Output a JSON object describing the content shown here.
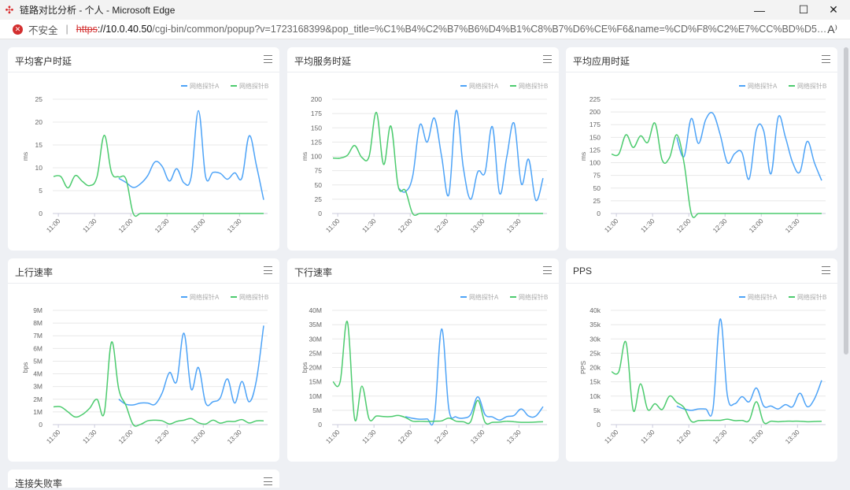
{
  "window": {
    "title": "链路对比分析 - 个人 - Microsoft Edge",
    "minimize": "—",
    "maximize": "☐",
    "close": "✕"
  },
  "address": {
    "security_label": "不安全",
    "protocol": "https",
    "host": "://10.0.40.50",
    "path": "/cgi-bin/common/popup?v=1723168399&pop_title=%C1%B4%C2%B7%B6%D4%B1%C8%B7%D6%CE%F6&name=%CD%F8%C2%E7%CC%BD%D5%EBA,%CD%F8%C...",
    "read_aloud": "A⁾"
  },
  "colors": {
    "series_a": "#4da3f7",
    "series_b": "#4ccb6e"
  },
  "legend": [
    "网络探针A",
    "网络探针B"
  ],
  "times": [
    "10:56",
    "11:02",
    "11:08",
    "11:14",
    "11:20",
    "11:26",
    "11:32",
    "11:38",
    "11:44",
    "11:50",
    "11:56",
    "12:02",
    "12:08",
    "12:14",
    "12:20",
    "12:26",
    "12:32",
    "12:38",
    "12:44",
    "12:50",
    "12:56",
    "13:02",
    "13:08",
    "13:14",
    "13:20",
    "13:26",
    "13:32",
    "13:38",
    "13:44",
    "13:50"
  ],
  "xticks": [
    "11:00",
    "11:30",
    "12:00",
    "12:30",
    "13:00",
    "13:30"
  ],
  "partial_card": {
    "title": "连接失败率"
  },
  "chart_data": [
    {
      "type": "line",
      "title": "平均客户时延",
      "ylabel": "ms",
      "ylim": [
        0,
        25
      ],
      "yticks": [
        0,
        5,
        10,
        15,
        20,
        25
      ],
      "ytick_labels": [
        "0",
        "5",
        "10",
        "15",
        "20",
        "25"
      ],
      "series": [
        {
          "name": "网络探针A",
          "values": [
            null,
            null,
            null,
            null,
            null,
            null,
            null,
            null,
            null,
            7.7,
            6.8,
            5.7,
            6.5,
            8.3,
            11.3,
            10.3,
            7.1,
            9.8,
            6.7,
            8,
            22.5,
            8,
            9,
            8.8,
            7.5,
            8.9,
            7.8,
            17,
            10.5,
            3
          ]
        },
        {
          "name": "网络探针B",
          "values": [
            8.1,
            8.1,
            5.6,
            8.3,
            7,
            6.1,
            8,
            17.1,
            9,
            8,
            7.5,
            0,
            0,
            0,
            0,
            0,
            0,
            0,
            0,
            0,
            0,
            0,
            0,
            0,
            0,
            0,
            0,
            0,
            0,
            0
          ]
        }
      ]
    },
    {
      "type": "line",
      "title": "平均服务时延",
      "ylabel": "ms",
      "ylim": [
        0,
        200
      ],
      "yticks": [
        0,
        25,
        50,
        75,
        100,
        125,
        150,
        175,
        200
      ],
      "ytick_labels": [
        "0",
        "25",
        "50",
        "75",
        "100",
        "125",
        "150",
        "175",
        "200"
      ],
      "series": [
        {
          "name": "网络探针A",
          "values": [
            null,
            null,
            null,
            null,
            null,
            null,
            null,
            null,
            null,
            45,
            38,
            65,
            155,
            125,
            167,
            100,
            33,
            180,
            80,
            25,
            73,
            72,
            152,
            35,
            100,
            158,
            52,
            95,
            23,
            62
          ]
        },
        {
          "name": "网络探针B",
          "values": [
            97,
            97,
            102,
            119,
            98,
            100,
            177,
            86,
            153,
            48,
            40,
            0,
            0,
            0,
            0,
            0,
            0,
            0,
            0,
            0,
            0,
            0,
            0,
            0,
            0,
            0,
            0,
            0,
            0,
            0
          ]
        }
      ]
    },
    {
      "type": "line",
      "title": "平均应用时延",
      "ylabel": "ms",
      "ylim": [
        0,
        225
      ],
      "yticks": [
        0,
        25,
        50,
        75,
        100,
        125,
        150,
        175,
        200,
        225
      ],
      "ytick_labels": [
        "0",
        "25",
        "50",
        "75",
        "100",
        "125",
        "150",
        "175",
        "200",
        "225"
      ],
      "series": [
        {
          "name": "网络探针A",
          "values": [
            null,
            null,
            null,
            null,
            null,
            null,
            null,
            null,
            null,
            150,
            112,
            187,
            138,
            185,
            197,
            155,
            100,
            118,
            120,
            68,
            165,
            163,
            78,
            190,
            150,
            100,
            82,
            142,
            100,
            65
          ]
        },
        {
          "name": "网络探针B",
          "values": [
            117,
            117,
            155,
            130,
            153,
            140,
            178,
            105,
            110,
            155,
            100,
            0,
            0,
            0,
            0,
            0,
            0,
            0,
            0,
            0,
            0,
            0,
            0,
            0,
            0,
            0,
            0,
            0,
            0,
            0
          ]
        }
      ]
    },
    {
      "type": "line",
      "title": "上行速率",
      "ylabel": "bps",
      "ylim": [
        0,
        9
      ],
      "yticks": [
        0,
        1,
        2,
        3,
        4,
        5,
        6,
        7,
        8,
        9
      ],
      "ytick_labels": [
        "0",
        "1M",
        "2M",
        "3M",
        "4M",
        "5M",
        "6M",
        "7M",
        "8M",
        "9M"
      ],
      "series": [
        {
          "name": "网络探针A",
          "values": [
            null,
            null,
            null,
            null,
            null,
            null,
            null,
            null,
            null,
            2.0,
            1.6,
            1.55,
            1.7,
            1.7,
            1.6,
            2.5,
            4.1,
            3.4,
            7.2,
            2.8,
            4.5,
            1.7,
            1.8,
            2.1,
            3.6,
            1.7,
            3.4,
            1.8,
            3.5,
            7.8
          ]
        },
        {
          "name": "网络探针B",
          "values": [
            1.4,
            1.4,
            1.0,
            0.6,
            0.8,
            1.3,
            2.0,
            0.9,
            6.5,
            2.8,
            1.5,
            0,
            0.02,
            0.3,
            0.35,
            0.3,
            0.05,
            0.25,
            0.35,
            0.48,
            0.15,
            0.05,
            0.35,
            0.12,
            0.25,
            0.25,
            0.4,
            0.13,
            0.3,
            0.3
          ]
        }
      ]
    },
    {
      "type": "line",
      "title": "下行速率",
      "ylabel": "bps",
      "ylim": [
        0,
        40
      ],
      "yticks": [
        0,
        5,
        10,
        15,
        20,
        25,
        30,
        35,
        40
      ],
      "ytick_labels": [
        "0",
        "5M",
        "10M",
        "15M",
        "20M",
        "25M",
        "30M",
        "35M",
        "40M"
      ],
      "series": [
        {
          "name": "网络探针A",
          "values": [
            null,
            null,
            null,
            null,
            null,
            null,
            null,
            null,
            null,
            null,
            2.8,
            2.2,
            1.9,
            2,
            2.5,
            33.5,
            5.5,
            2.7,
            2.3,
            3.5,
            9.7,
            3.5,
            2.7,
            1.6,
            2.8,
            3.2,
            5.5,
            3,
            3,
            6.3
          ]
        },
        {
          "name": "网络探针B",
          "values": [
            15,
            15,
            36,
            2,
            13.5,
            2,
            3,
            2.8,
            2.8,
            3.2,
            2.5,
            1.2,
            1.2,
            1.1,
            1.2,
            1.3,
            2.3,
            1.2,
            1,
            1,
            8.5,
            0.8,
            0.8,
            0.9,
            1.2,
            1,
            0.8,
            0.8,
            0.9,
            1
          ]
        }
      ]
    },
    {
      "type": "line",
      "title": "PPS",
      "ylabel": "PPS",
      "ylim": [
        0,
        40
      ],
      "yticks": [
        0,
        5,
        10,
        15,
        20,
        25,
        30,
        35,
        40
      ],
      "ytick_labels": [
        "0",
        "5k",
        "10k",
        "15k",
        "20k",
        "25k",
        "30k",
        "35k",
        "40k"
      ],
      "series": [
        {
          "name": "网络探针A",
          "values": [
            null,
            null,
            null,
            null,
            null,
            null,
            null,
            null,
            null,
            6.5,
            5.5,
            5,
            5.5,
            5.5,
            5.5,
            37,
            10,
            7.3,
            9.8,
            8,
            12.8,
            6.5,
            6.5,
            5.5,
            7,
            6.3,
            11,
            6.3,
            9,
            15.5
          ]
        },
        {
          "name": "网络探针B",
          "values": [
            18.5,
            18.5,
            28.8,
            5,
            14.3,
            5.3,
            7.3,
            5.3,
            10,
            7.8,
            6,
            1.2,
            1.4,
            1.5,
            1.5,
            1.5,
            1.9,
            1.4,
            1.5,
            1.5,
            8,
            0.8,
            1.2,
            1,
            1.2,
            1.2,
            1.2,
            1,
            1.1,
            1.2
          ]
        }
      ]
    }
  ]
}
